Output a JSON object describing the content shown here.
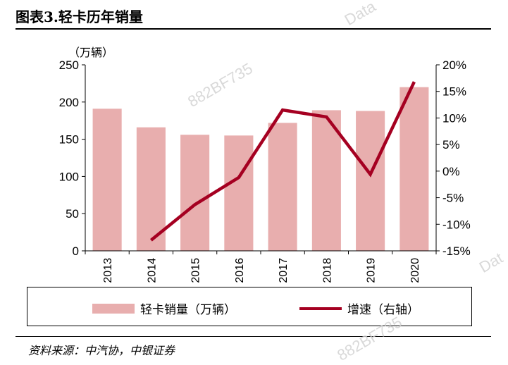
{
  "page": {
    "title": "图表3.轻卡历年销量",
    "source": "资料来源：中汽协，中银证券",
    "watermark_1": "Data",
    "watermark_2": "882BF735",
    "watermark_3": "882BF735",
    "watermark_4": "Dat"
  },
  "colors": {
    "bar": "#e8aeae",
    "line": "#a50021",
    "axis": "#000000"
  },
  "chart_data": {
    "type": "bar+line",
    "categories": [
      "2013",
      "2014",
      "2015",
      "2016",
      "2017",
      "2018",
      "2019",
      "2020"
    ],
    "y_left_unit": "（万辆）",
    "y_left_lim": [
      0,
      250
    ],
    "y_left_ticks": [
      "0",
      "50",
      "100",
      "150",
      "200",
      "250"
    ],
    "y_right_lim": [
      -15,
      20
    ],
    "y_right_ticks": [
      "-15%",
      "-10%",
      "-5%",
      "0%",
      "5%",
      "10%",
      "15%",
      "20%"
    ],
    "series": [
      {
        "name": "轻卡销量（万辆）",
        "type": "bar",
        "axis": "left",
        "values": [
          191,
          166,
          156,
          155,
          172,
          189,
          188,
          220
        ]
      },
      {
        "name": "增速（右轴）",
        "type": "line",
        "axis": "right",
        "values": [
          null,
          -13,
          -6.3,
          -1.2,
          11.5,
          10.2,
          -0.6,
          16.8
        ]
      }
    ],
    "legend": "bottom"
  }
}
